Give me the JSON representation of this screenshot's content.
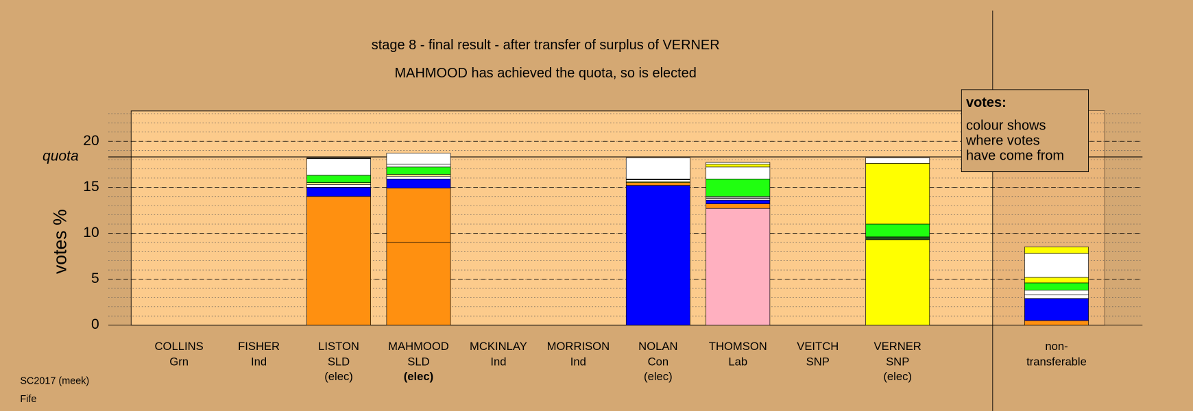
{
  "chart_data": {
    "type": "stacked-bar",
    "title": "stage 8 - final result - after transfer of surplus of VERNER",
    "subtitle": "MAHMOOD has achieved the quota, so is elected",
    "y_label": "votes %",
    "ylim": [
      0,
      23.3
    ],
    "yticks": [
      0,
      5,
      10,
      15,
      20
    ],
    "minor_step": 1,
    "quota": {
      "value": 18.3,
      "label": "quota"
    },
    "legend": {
      "title": "votes:",
      "lines": [
        "colour shows",
        "where votes",
        "have come from"
      ]
    },
    "footer": [
      "SC2017 (meek)",
      "Fife"
    ],
    "bars": [
      {
        "name": "COLLINS",
        "lines": [
          "Grn"
        ],
        "segments": []
      },
      {
        "name": "FISHER",
        "lines": [
          "Ind"
        ],
        "segments": []
      },
      {
        "name": "LISTON",
        "lines": [
          "SLD",
          "(elec)"
        ],
        "segments": [
          {
            "color": "#ff9010",
            "value": 14.0
          },
          {
            "color": "#0000ff",
            "value": 1.0
          },
          {
            "color": "#ffffff",
            "value": 0.3
          },
          {
            "color": "#ffff80",
            "value": 0.2
          },
          {
            "color": "#20ff10",
            "value": 0.8
          },
          {
            "color": "#ffffff",
            "value": 1.8
          },
          {
            "color": "#404040",
            "value": 0.1
          }
        ]
      },
      {
        "name": "MAHMOOD",
        "lines": [
          "SLD",
          "(elec)"
        ],
        "bold_last": true,
        "segments": [
          {
            "color": "#ff9010",
            "value": 9.0
          },
          {
            "color": "#ff9010",
            "value": 5.9
          },
          {
            "color": "#0000ff",
            "value": 1.0
          },
          {
            "color": "#ffffff",
            "value": 0.3
          },
          {
            "color": "#ffff80",
            "value": 0.2
          },
          {
            "color": "#20ff10",
            "value": 0.8
          },
          {
            "color": "#ffffff",
            "value": 0.3
          },
          {
            "color": "#ffffff",
            "value": 1.2
          }
        ]
      },
      {
        "name": "MCKINLAY",
        "lines": [
          "Ind"
        ],
        "segments": []
      },
      {
        "name": "MORRISON",
        "lines": [
          "Ind"
        ],
        "segments": []
      },
      {
        "name": "NOLAN",
        "lines": [
          "Con",
          "(elec)"
        ],
        "segments": [
          {
            "color": "#0000ff",
            "value": 15.2
          },
          {
            "color": "#ff9010",
            "value": 0.3
          },
          {
            "color": "#ffff00",
            "value": 0.1
          },
          {
            "color": "#ffffff",
            "value": 0.2
          },
          {
            "color": "#303030",
            "value": 0.1
          },
          {
            "color": "#ffffff",
            "value": 2.3
          }
        ]
      },
      {
        "name": "THOMSON",
        "lines": [
          "Lab"
        ],
        "segments": [
          {
            "color": "#ffb0c0",
            "value": 12.7
          },
          {
            "color": "#ff9010",
            "value": 0.5
          },
          {
            "color": "#0000ff",
            "value": 0.4
          },
          {
            "color": "#ffffff",
            "value": 0.2
          },
          {
            "color": "#a0a0a0",
            "value": 0.2
          },
          {
            "color": "#20ff10",
            "value": 1.9
          },
          {
            "color": "#ffffff",
            "value": 1.3
          },
          {
            "color": "#ffff00",
            "value": 0.3
          },
          {
            "color": "#ffffff",
            "value": 0.2
          }
        ]
      },
      {
        "name": "VEITCH",
        "lines": [
          "SNP"
        ],
        "segments": []
      },
      {
        "name": "VERNER",
        "lines": [
          "SNP",
          "(elec)"
        ],
        "segments": [
          {
            "color": "#ffff00",
            "value": 9.3
          },
          {
            "color": "#205020",
            "value": 0.3
          },
          {
            "color": "#20ff10",
            "value": 1.4
          },
          {
            "color": "#ffff00",
            "value": 6.6
          },
          {
            "color": "#ffffff",
            "value": 0.6
          }
        ]
      },
      {
        "name": "non-",
        "lines": [
          "transferable"
        ],
        "segments": [
          {
            "color": "#ff9010",
            "value": 0.5
          },
          {
            "color": "#0000ff",
            "value": 2.4
          },
          {
            "color": "#ffffff",
            "value": 0.4
          },
          {
            "color": "#ffffff",
            "value": 0.5
          },
          {
            "color": "#20ff10",
            "value": 0.8
          },
          {
            "color": "#ffff00",
            "value": 0.6
          },
          {
            "color": "#ffffff",
            "value": 2.6
          },
          {
            "color": "#ffff00",
            "value": 0.7
          }
        ]
      }
    ]
  }
}
